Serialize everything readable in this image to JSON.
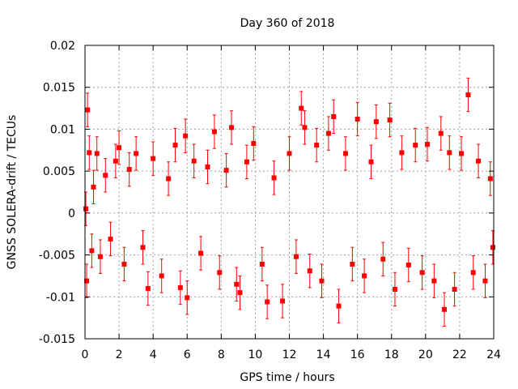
{
  "chart_data": {
    "type": "scatter",
    "title": "Day 360 of 2018",
    "xlabel": "GPS time / hours",
    "ylabel": "GNSS SOLERA-drift / TECUs",
    "xlim": [
      0,
      24
    ],
    "ylim": [
      -0.015,
      0.02
    ],
    "xticks": [
      "0",
      "2",
      "4",
      "6",
      "8",
      "10",
      "12",
      "14",
      "16",
      "18",
      "20",
      "22",
      "24"
    ],
    "yticks": [
      "-0.015",
      "-0.01",
      "-0.005",
      "0",
      "0.005",
      "0.01",
      "0.015",
      "0.02"
    ],
    "grid": true,
    "series": [
      {
        "name": "SOLERA-drift",
        "color": "#ff0000",
        "marker": "square",
        "error_bars": true,
        "points": [
          {
            "x": 0.05,
            "y": 0.0005,
            "err": 0.002
          },
          {
            "x": 0.1,
            "y": -0.0081,
            "err": 0.002
          },
          {
            "x": 0.15,
            "y": 0.0123,
            "err": 0.002
          },
          {
            "x": 0.25,
            "y": 0.0072,
            "err": 0.002
          },
          {
            "x": 0.4,
            "y": -0.0045,
            "err": 0.002
          },
          {
            "x": 0.5,
            "y": 0.0031,
            "err": 0.002
          },
          {
            "x": 0.7,
            "y": 0.0071,
            "err": 0.002
          },
          {
            "x": 0.9,
            "y": -0.0052,
            "err": 0.002
          },
          {
            "x": 1.2,
            "y": 0.0045,
            "err": 0.002
          },
          {
            "x": 1.5,
            "y": -0.0031,
            "err": 0.002
          },
          {
            "x": 1.8,
            "y": 0.0062,
            "err": 0.002
          },
          {
            "x": 2.0,
            "y": 0.0078,
            "err": 0.002
          },
          {
            "x": 2.3,
            "y": -0.0061,
            "err": 0.002
          },
          {
            "x": 2.6,
            "y": 0.0052,
            "err": 0.002
          },
          {
            "x": 3.0,
            "y": 0.0071,
            "err": 0.002
          },
          {
            "x": 3.4,
            "y": -0.0041,
            "err": 0.002
          },
          {
            "x": 3.7,
            "y": -0.009,
            "err": 0.002
          },
          {
            "x": 4.0,
            "y": 0.0065,
            "err": 0.002
          },
          {
            "x": 4.5,
            "y": -0.0075,
            "err": 0.002
          },
          {
            "x": 4.9,
            "y": 0.0041,
            "err": 0.002
          },
          {
            "x": 5.3,
            "y": 0.0081,
            "err": 0.002
          },
          {
            "x": 5.6,
            "y": -0.0089,
            "err": 0.002
          },
          {
            "x": 5.9,
            "y": 0.0092,
            "err": 0.002
          },
          {
            "x": 6.0,
            "y": -0.0101,
            "err": 0.002
          },
          {
            "x": 6.4,
            "y": 0.0062,
            "err": 0.002
          },
          {
            "x": 6.8,
            "y": -0.0048,
            "err": 0.002
          },
          {
            "x": 7.2,
            "y": 0.0055,
            "err": 0.002
          },
          {
            "x": 7.6,
            "y": 0.0097,
            "err": 0.002
          },
          {
            "x": 7.9,
            "y": -0.0071,
            "err": 0.002
          },
          {
            "x": 8.3,
            "y": 0.0051,
            "err": 0.002
          },
          {
            "x": 8.6,
            "y": 0.0102,
            "err": 0.002
          },
          {
            "x": 8.9,
            "y": -0.0085,
            "err": 0.002
          },
          {
            "x": 9.1,
            "y": -0.0095,
            "err": 0.002
          },
          {
            "x": 9.5,
            "y": 0.0061,
            "err": 0.002
          },
          {
            "x": 9.9,
            "y": 0.0083,
            "err": 0.002
          },
          {
            "x": 10.4,
            "y": -0.0061,
            "err": 0.002
          },
          {
            "x": 10.7,
            "y": -0.0106,
            "err": 0.002
          },
          {
            "x": 11.1,
            "y": 0.0042,
            "err": 0.002
          },
          {
            "x": 11.6,
            "y": -0.0105,
            "err": 0.002
          },
          {
            "x": 12.0,
            "y": 0.0071,
            "err": 0.002
          },
          {
            "x": 12.4,
            "y": -0.0052,
            "err": 0.002
          },
          {
            "x": 12.7,
            "y": 0.0125,
            "err": 0.002
          },
          {
            "x": 12.9,
            "y": 0.0102,
            "err": 0.002
          },
          {
            "x": 13.2,
            "y": -0.0069,
            "err": 0.002
          },
          {
            "x": 13.6,
            "y": 0.0081,
            "err": 0.002
          },
          {
            "x": 13.9,
            "y": -0.0081,
            "err": 0.002
          },
          {
            "x": 14.3,
            "y": 0.0095,
            "err": 0.002
          },
          {
            "x": 14.6,
            "y": 0.0115,
            "err": 0.002
          },
          {
            "x": 14.9,
            "y": -0.0111,
            "err": 0.002
          },
          {
            "x": 15.3,
            "y": 0.0071,
            "err": 0.002
          },
          {
            "x": 15.7,
            "y": -0.0061,
            "err": 0.002
          },
          {
            "x": 16.0,
            "y": 0.0112,
            "err": 0.002
          },
          {
            "x": 16.4,
            "y": -0.0075,
            "err": 0.002
          },
          {
            "x": 16.8,
            "y": 0.0061,
            "err": 0.002
          },
          {
            "x": 17.1,
            "y": 0.0109,
            "err": 0.002
          },
          {
            "x": 17.5,
            "y": -0.0055,
            "err": 0.002
          },
          {
            "x": 17.9,
            "y": 0.0111,
            "err": 0.002
          },
          {
            "x": 18.2,
            "y": -0.0091,
            "err": 0.002
          },
          {
            "x": 18.6,
            "y": 0.0072,
            "err": 0.002
          },
          {
            "x": 19.0,
            "y": -0.0062,
            "err": 0.002
          },
          {
            "x": 19.4,
            "y": 0.0081,
            "err": 0.002
          },
          {
            "x": 19.8,
            "y": -0.0071,
            "err": 0.002
          },
          {
            "x": 20.1,
            "y": 0.0082,
            "err": 0.002
          },
          {
            "x": 20.5,
            "y": -0.0081,
            "err": 0.002
          },
          {
            "x": 20.9,
            "y": 0.0095,
            "err": 0.002
          },
          {
            "x": 21.1,
            "y": -0.0115,
            "err": 0.002
          },
          {
            "x": 21.4,
            "y": 0.0072,
            "err": 0.002
          },
          {
            "x": 21.7,
            "y": -0.0091,
            "err": 0.002
          },
          {
            "x": 22.1,
            "y": 0.0071,
            "err": 0.002
          },
          {
            "x": 22.5,
            "y": 0.0141,
            "err": 0.002
          },
          {
            "x": 22.8,
            "y": -0.0071,
            "err": 0.002
          },
          {
            "x": 23.1,
            "y": 0.0062,
            "err": 0.002
          },
          {
            "x": 23.5,
            "y": -0.0081,
            "err": 0.002
          },
          {
            "x": 23.8,
            "y": 0.0041,
            "err": 0.002
          },
          {
            "x": 23.95,
            "y": -0.0041,
            "err": 0.002
          }
        ]
      }
    ]
  }
}
